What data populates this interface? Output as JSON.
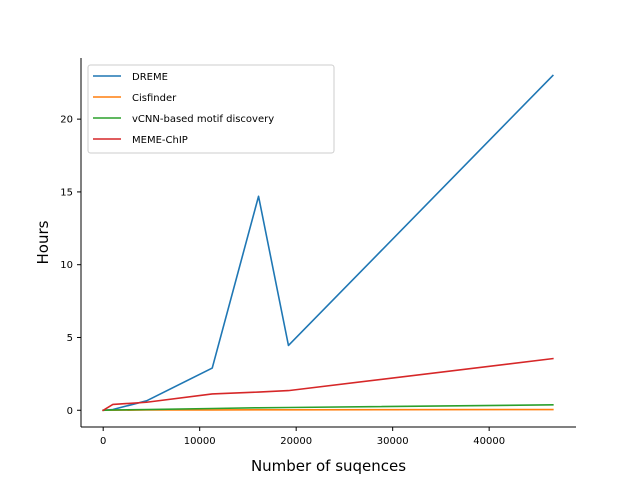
{
  "chart_data": {
    "type": "line",
    "title": "",
    "xlabel": "Number of suqences",
    "ylabel": "Hours",
    "xlim": [
      -2300,
      49000
    ],
    "ylim": [
      -1.15,
      24.2
    ],
    "xticks": [
      0,
      10000,
      20000,
      30000,
      40000
    ],
    "xtick_labels": [
      "0",
      "10000",
      "20000",
      "30000",
      "40000"
    ],
    "yticks": [
      0,
      5,
      10,
      15,
      20
    ],
    "ytick_labels": [
      "0",
      "5",
      "10",
      "15",
      "20"
    ],
    "grid": false,
    "legend_position": "top-left",
    "series": [
      {
        "name": "DREME",
        "color": "#1f77b4",
        "points": [
          [
            0,
            0
          ],
          [
            1000,
            0.05
          ],
          [
            4500,
            0.65
          ],
          [
            11300,
            2.9
          ],
          [
            16100,
            14.7
          ],
          [
            19200,
            4.45
          ],
          [
            46600,
            23.0
          ]
        ]
      },
      {
        "name": "Cisfinder",
        "color": "#ff7f0e",
        "points": [
          [
            0,
            0
          ],
          [
            1000,
            0.0
          ],
          [
            4500,
            0.02
          ],
          [
            11300,
            0.02
          ],
          [
            16100,
            0.03
          ],
          [
            19200,
            0.03
          ],
          [
            46600,
            0.05
          ]
        ]
      },
      {
        "name": "vCNN-based motif discovery",
        "color": "#2ca02c",
        "points": [
          [
            0,
            0
          ],
          [
            1000,
            0.02
          ],
          [
            4500,
            0.05
          ],
          [
            11300,
            0.12
          ],
          [
            16100,
            0.17
          ],
          [
            19200,
            0.19
          ],
          [
            46600,
            0.37
          ]
        ]
      },
      {
        "name": "MEME-ChIP",
        "color": "#d62728",
        "points": [
          [
            0,
            0
          ],
          [
            1000,
            0.4
          ],
          [
            4500,
            0.55
          ],
          [
            11300,
            1.12
          ],
          [
            16100,
            1.25
          ],
          [
            19200,
            1.35
          ],
          [
            46600,
            3.55
          ]
        ]
      }
    ]
  }
}
